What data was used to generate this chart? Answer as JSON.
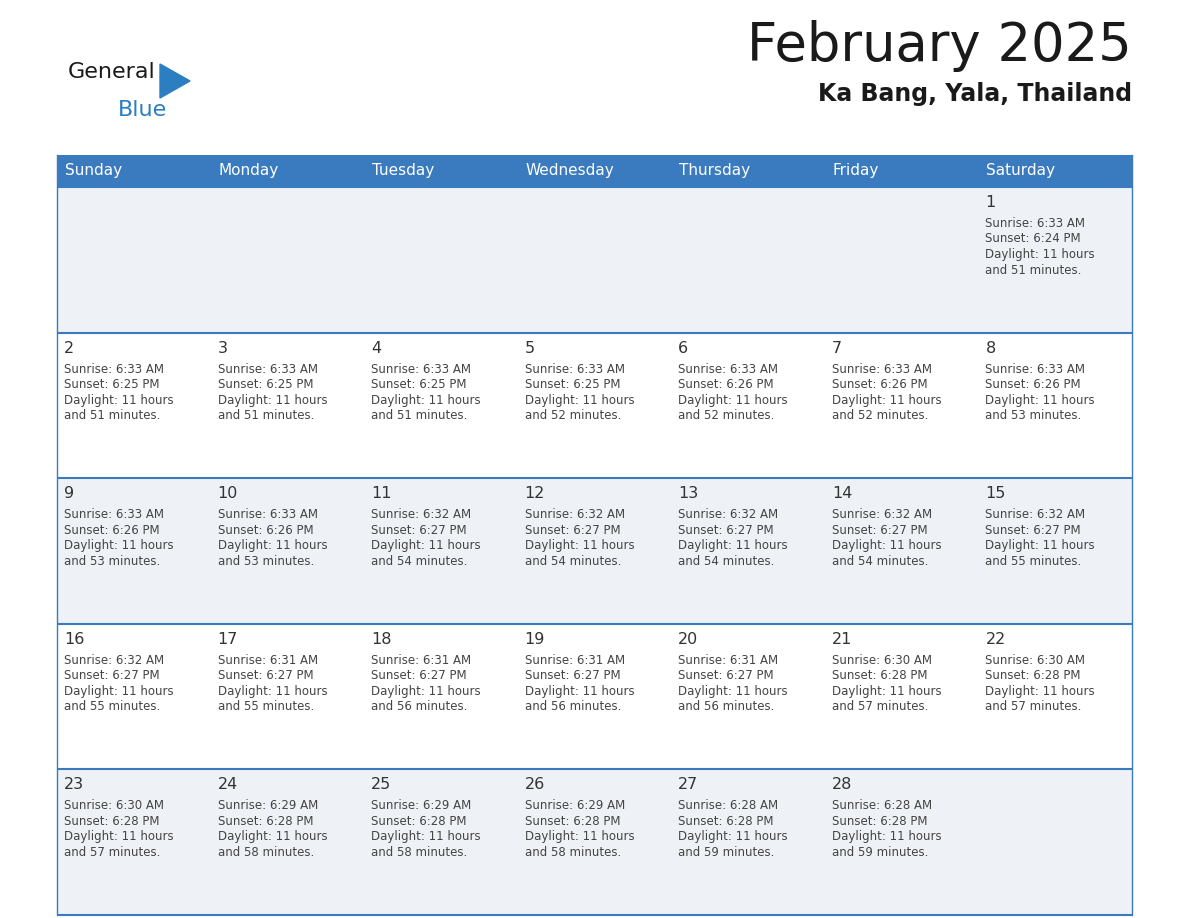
{
  "title": "February 2025",
  "subtitle": "Ka Bang, Yala, Thailand",
  "header_color": "#3a7abf",
  "header_text_color": "#ffffff",
  "day_names": [
    "Sunday",
    "Monday",
    "Tuesday",
    "Wednesday",
    "Thursday",
    "Friday",
    "Saturday"
  ],
  "cell_bg_even": "#eef2f7",
  "cell_bg_odd": "#ffffff",
  "cell_border_color": "#3a7abf",
  "text_color": "#444444",
  "day_num_color": "#333333",
  "logo_text1_color": "#1a1a1a",
  "logo_text2_color": "#2b7ec1",
  "logo_triangle_color": "#2b7ec1",
  "title_color": "#1a1a1a",
  "subtitle_color": "#1a1a1a",
  "calendar_data": [
    [
      null,
      null,
      null,
      null,
      null,
      null,
      {
        "day": 1,
        "sunrise": "6:33 AM",
        "sunset": "6:24 PM",
        "daylight_min": "51 minutes."
      }
    ],
    [
      {
        "day": 2,
        "sunrise": "6:33 AM",
        "sunset": "6:25 PM",
        "daylight_min": "51 minutes."
      },
      {
        "day": 3,
        "sunrise": "6:33 AM",
        "sunset": "6:25 PM",
        "daylight_min": "51 minutes."
      },
      {
        "day": 4,
        "sunrise": "6:33 AM",
        "sunset": "6:25 PM",
        "daylight_min": "51 minutes."
      },
      {
        "day": 5,
        "sunrise": "6:33 AM",
        "sunset": "6:25 PM",
        "daylight_min": "52 minutes."
      },
      {
        "day": 6,
        "sunrise": "6:33 AM",
        "sunset": "6:26 PM",
        "daylight_min": "52 minutes."
      },
      {
        "day": 7,
        "sunrise": "6:33 AM",
        "sunset": "6:26 PM",
        "daylight_min": "52 minutes."
      },
      {
        "day": 8,
        "sunrise": "6:33 AM",
        "sunset": "6:26 PM",
        "daylight_min": "53 minutes."
      }
    ],
    [
      {
        "day": 9,
        "sunrise": "6:33 AM",
        "sunset": "6:26 PM",
        "daylight_min": "53 minutes."
      },
      {
        "day": 10,
        "sunrise": "6:33 AM",
        "sunset": "6:26 PM",
        "daylight_min": "53 minutes."
      },
      {
        "day": 11,
        "sunrise": "6:32 AM",
        "sunset": "6:27 PM",
        "daylight_min": "54 minutes."
      },
      {
        "day": 12,
        "sunrise": "6:32 AM",
        "sunset": "6:27 PM",
        "daylight_min": "54 minutes."
      },
      {
        "day": 13,
        "sunrise": "6:32 AM",
        "sunset": "6:27 PM",
        "daylight_min": "54 minutes."
      },
      {
        "day": 14,
        "sunrise": "6:32 AM",
        "sunset": "6:27 PM",
        "daylight_min": "54 minutes."
      },
      {
        "day": 15,
        "sunrise": "6:32 AM",
        "sunset": "6:27 PM",
        "daylight_min": "55 minutes."
      }
    ],
    [
      {
        "day": 16,
        "sunrise": "6:32 AM",
        "sunset": "6:27 PM",
        "daylight_min": "55 minutes."
      },
      {
        "day": 17,
        "sunrise": "6:31 AM",
        "sunset": "6:27 PM",
        "daylight_min": "55 minutes."
      },
      {
        "day": 18,
        "sunrise": "6:31 AM",
        "sunset": "6:27 PM",
        "daylight_min": "56 minutes."
      },
      {
        "day": 19,
        "sunrise": "6:31 AM",
        "sunset": "6:27 PM",
        "daylight_min": "56 minutes."
      },
      {
        "day": 20,
        "sunrise": "6:31 AM",
        "sunset": "6:27 PM",
        "daylight_min": "56 minutes."
      },
      {
        "day": 21,
        "sunrise": "6:30 AM",
        "sunset": "6:28 PM",
        "daylight_min": "57 minutes."
      },
      {
        "day": 22,
        "sunrise": "6:30 AM",
        "sunset": "6:28 PM",
        "daylight_min": "57 minutes."
      }
    ],
    [
      {
        "day": 23,
        "sunrise": "6:30 AM",
        "sunset": "6:28 PM",
        "daylight_min": "57 minutes."
      },
      {
        "day": 24,
        "sunrise": "6:29 AM",
        "sunset": "6:28 PM",
        "daylight_min": "58 minutes."
      },
      {
        "day": 25,
        "sunrise": "6:29 AM",
        "sunset": "6:28 PM",
        "daylight_min": "58 minutes."
      },
      {
        "day": 26,
        "sunrise": "6:29 AM",
        "sunset": "6:28 PM",
        "daylight_min": "58 minutes."
      },
      {
        "day": 27,
        "sunrise": "6:28 AM",
        "sunset": "6:28 PM",
        "daylight_min": "59 minutes."
      },
      {
        "day": 28,
        "sunrise": "6:28 AM",
        "sunset": "6:28 PM",
        "daylight_min": "59 minutes."
      },
      null
    ]
  ]
}
